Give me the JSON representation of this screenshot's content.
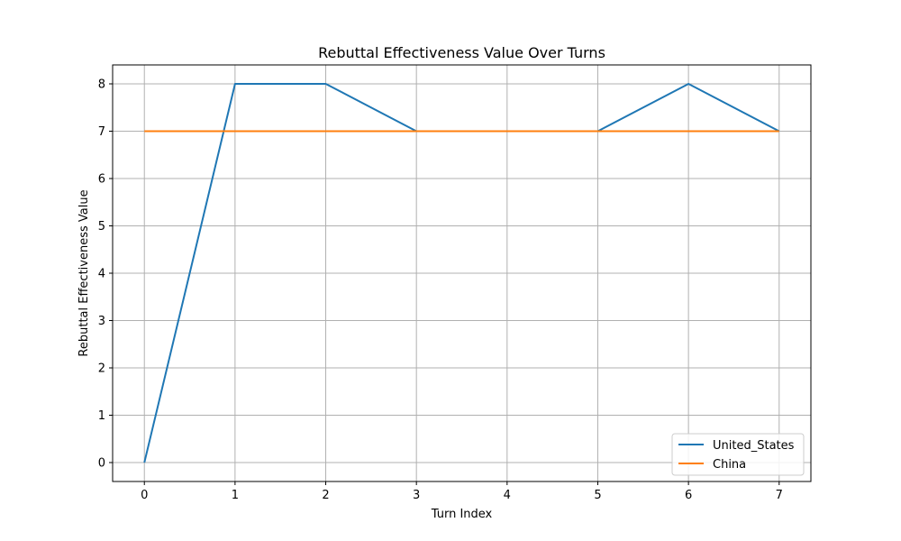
{
  "chart_data": {
    "type": "line",
    "title": "Rebuttal Effectiveness Value Over Turns",
    "xlabel": "Turn Index",
    "ylabel": "Rebuttal Effectiveness Value",
    "x": [
      0,
      1,
      2,
      3,
      4,
      5,
      6,
      7
    ],
    "xlim": [
      -0.35,
      7.35
    ],
    "ylim": [
      -0.4,
      8.4
    ],
    "xticks": [
      0,
      1,
      2,
      3,
      4,
      5,
      6,
      7
    ],
    "yticks": [
      0,
      1,
      2,
      3,
      4,
      5,
      6,
      7,
      8
    ],
    "grid": true,
    "legend_position": "lower-right",
    "series": [
      {
        "name": "United_States",
        "color": "#1f77b4",
        "values": [
          0,
          8,
          8,
          7,
          7,
          7,
          8,
          7
        ]
      },
      {
        "name": "China",
        "color": "#ff7f0e",
        "values": [
          7,
          7,
          7,
          7,
          7,
          7,
          7,
          7
        ]
      }
    ]
  }
}
